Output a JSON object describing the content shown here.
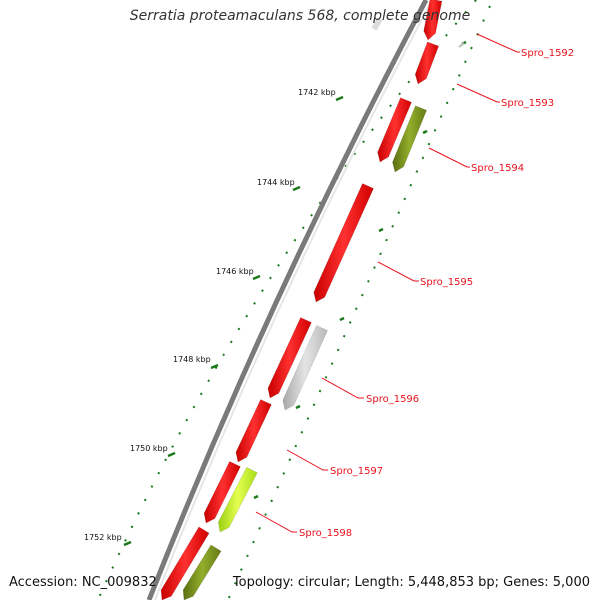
{
  "title": "Serratia proteamaculans 568, complete genome",
  "footer": {
    "accession": "Accession: NC_009832",
    "topology": "Topology: circular; Length: 5,448,853 bp; Genes: 5,000"
  },
  "colors": {
    "gene_red": "#ff2222",
    "gene_grey": "#cfcfcf",
    "gene_olive": "#7f9a20",
    "gene_lime": "#c8f020",
    "backbone": "#7a7a7a",
    "tick_green": "#1a7a1a",
    "label_red": "#e8121d"
  },
  "scale_labels": [
    "1742 kbp",
    "1744 kbp",
    "1746 kbp",
    "1748 kbp",
    "1750 kbp",
    "1752 kbp"
  ],
  "gene_labels": [
    "Spro_1592",
    "Spro_1593",
    "Spro_1594",
    "Spro_1595",
    "Spro_1596",
    "Spro_1597",
    "Spro_1598"
  ]
}
